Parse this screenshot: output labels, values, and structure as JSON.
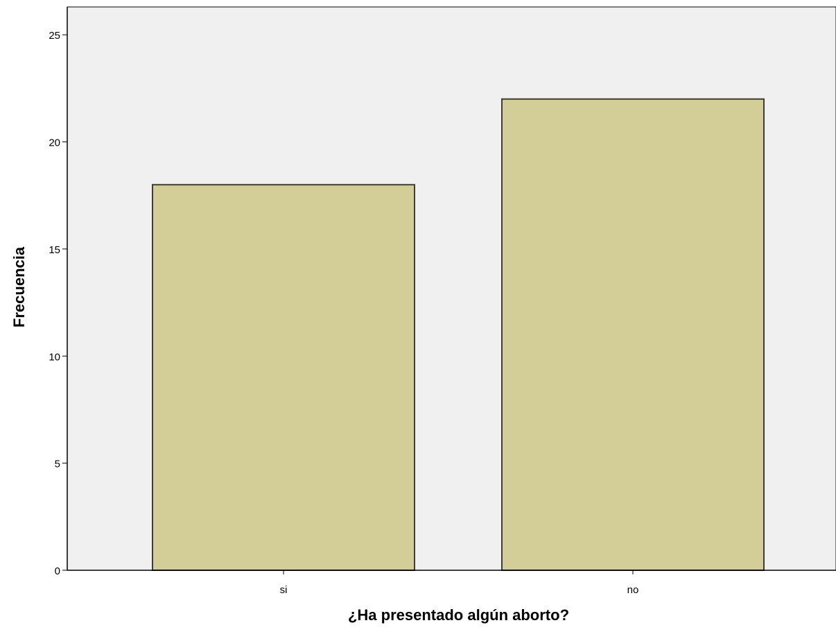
{
  "chart_data": {
    "type": "bar",
    "title": "",
    "xlabel": "¿Ha presentado algún aborto?",
    "ylabel": "Frecuencia",
    "categories": [
      "si",
      "no"
    ],
    "values": [
      18,
      22
    ],
    "ylim": [
      0,
      26.3
    ],
    "yticks": [
      0,
      5,
      10,
      15,
      20,
      25
    ],
    "grid": false,
    "legend": "none",
    "colors": {
      "plot_background": "#f0f0f0",
      "bar_fill": "#d3ce98",
      "bar_stroke": "#3c3c3c",
      "axis": "#000000"
    }
  }
}
